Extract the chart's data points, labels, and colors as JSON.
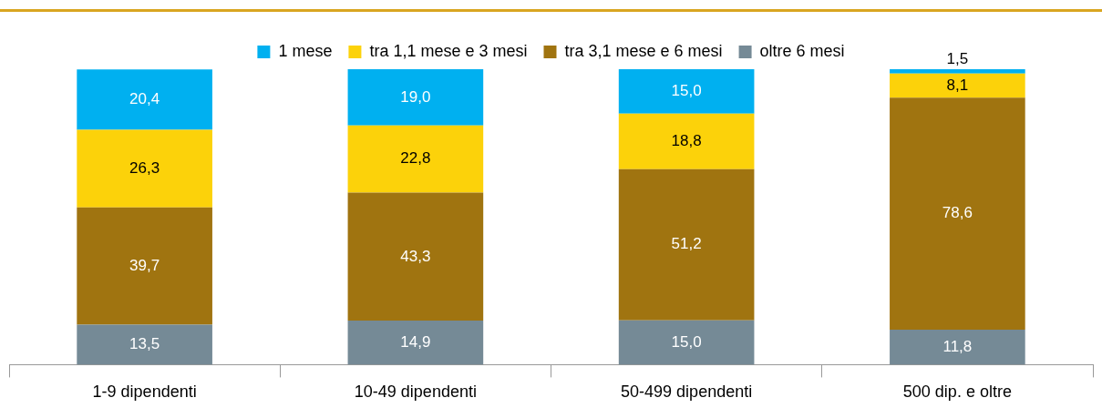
{
  "chart_data": {
    "type": "bar",
    "stacked": true,
    "legend": "top",
    "grid": false,
    "categories": [
      "1-9 dipendenti",
      "10-49 dipendenti",
      "50-499 dipendenti",
      "500 dip. e oltre"
    ],
    "series": [
      {
        "name": "oltre 6 mesi",
        "color": "#758a96",
        "values": [
          13.5,
          14.9,
          15.0,
          11.8
        ],
        "value_labels": [
          "13,5",
          "14,9",
          "15,0",
          "11,8"
        ]
      },
      {
        "name": "tra 3,1 mese e 6 mesi",
        "color": "#a07410",
        "values": [
          39.7,
          43.3,
          51.2,
          78.6
        ],
        "value_labels": [
          "39,7",
          "43,3",
          "51,2",
          "78,6"
        ]
      },
      {
        "name": "tra 1,1 mese e 3 mesi",
        "color": "#fcd20a",
        "values": [
          26.3,
          22.8,
          18.8,
          8.1
        ],
        "value_labels": [
          "26,3",
          "22,8",
          "18,8",
          "8,1"
        ]
      },
      {
        "name": "1 mese",
        "color": "#00b0f0",
        "values": [
          20.4,
          19.0,
          15.0,
          1.5
        ],
        "value_labels": [
          "20,4",
          "19,0",
          "15,0",
          "1,5"
        ]
      }
    ]
  }
}
